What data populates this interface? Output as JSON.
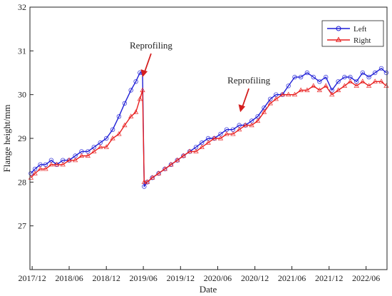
{
  "chart_data": {
    "type": "line",
    "xlabel": "Date",
    "ylabel": "Flange height/mm",
    "x_range": [
      "2017-11-20",
      "2022-09-12"
    ],
    "ylim": [
      26.0,
      32.0
    ],
    "x_ticks": [
      {
        "date": "2017-12-01",
        "label": "2017/12"
      },
      {
        "date": "2018-06-01",
        "label": "2018/06"
      },
      {
        "date": "2018-12-01",
        "label": "2018/12"
      },
      {
        "date": "2019-06-01",
        "label": "2019/06"
      },
      {
        "date": "2019-12-01",
        "label": "2019/12"
      },
      {
        "date": "2020-06-01",
        "label": "2020/06"
      },
      {
        "date": "2020-12-01",
        "label": "2020/12"
      },
      {
        "date": "2021-06-01",
        "label": "2021/06"
      },
      {
        "date": "2021-12-01",
        "label": "2021/12"
      },
      {
        "date": "2022-06-01",
        "label": "2022/06"
      }
    ],
    "y_ticks": [
      {
        "value": 27,
        "label": "27"
      },
      {
        "value": 28,
        "label": "28"
      },
      {
        "value": 29,
        "label": "29"
      },
      {
        "value": 30,
        "label": "30"
      },
      {
        "value": 31,
        "label": "31"
      },
      {
        "value": 32,
        "label": "32"
      }
    ],
    "grid": false,
    "legend_position": "top-right",
    "series": [
      {
        "name": "Left",
        "color": "#1f1fd6",
        "marker": "circle",
        "points": [
          [
            "2017-11-25",
            28.2
          ],
          [
            "2017-12-15",
            28.3
          ],
          [
            "2018-01-10",
            28.4
          ],
          [
            "2018-02-05",
            28.4
          ],
          [
            "2018-03-05",
            28.5
          ],
          [
            "2018-04-01",
            28.4
          ],
          [
            "2018-05-01",
            28.5
          ],
          [
            "2018-06-01",
            28.5
          ],
          [
            "2018-07-01",
            28.6
          ],
          [
            "2018-08-01",
            28.7
          ],
          [
            "2018-09-01",
            28.7
          ],
          [
            "2018-10-01",
            28.8
          ],
          [
            "2018-11-01",
            28.9
          ],
          [
            "2018-12-01",
            29.0
          ],
          [
            "2019-01-01",
            29.2
          ],
          [
            "2019-02-01",
            29.5
          ],
          [
            "2019-03-01",
            29.8
          ],
          [
            "2019-04-01",
            30.1
          ],
          [
            "2019-04-25",
            30.3
          ],
          [
            "2019-05-15",
            30.5
          ],
          [
            "2019-05-28",
            30.5
          ],
          [
            "2019-06-05",
            27.9
          ],
          [
            "2019-06-20",
            28.0
          ],
          [
            "2019-07-15",
            28.1
          ],
          [
            "2019-08-15",
            28.2
          ],
          [
            "2019-09-15",
            28.3
          ],
          [
            "2019-10-15",
            28.4
          ],
          [
            "2019-11-15",
            28.5
          ],
          [
            "2019-12-15",
            28.6
          ],
          [
            "2020-01-15",
            28.7
          ],
          [
            "2020-02-15",
            28.8
          ],
          [
            "2020-03-15",
            28.9
          ],
          [
            "2020-04-15",
            29.0
          ],
          [
            "2020-05-15",
            29.0
          ],
          [
            "2020-06-15",
            29.1
          ],
          [
            "2020-07-15",
            29.2
          ],
          [
            "2020-08-15",
            29.2
          ],
          [
            "2020-09-15",
            29.3
          ],
          [
            "2020-10-15",
            29.3
          ],
          [
            "2020-11-15",
            29.4
          ],
          [
            "2020-12-15",
            29.5
          ],
          [
            "2021-01-15",
            29.7
          ],
          [
            "2021-02-15",
            29.9
          ],
          [
            "2021-03-15",
            30.0
          ],
          [
            "2021-04-15",
            30.0
          ],
          [
            "2021-05-15",
            30.2
          ],
          [
            "2021-06-15",
            30.4
          ],
          [
            "2021-07-15",
            30.4
          ],
          [
            "2021-08-15",
            30.5
          ],
          [
            "2021-09-15",
            30.4
          ],
          [
            "2021-10-15",
            30.3
          ],
          [
            "2021-11-15",
            30.4
          ],
          [
            "2021-12-15",
            30.1
          ],
          [
            "2022-01-15",
            30.3
          ],
          [
            "2022-02-15",
            30.4
          ],
          [
            "2022-03-15",
            30.4
          ],
          [
            "2022-04-15",
            30.3
          ],
          [
            "2022-05-15",
            30.5
          ],
          [
            "2022-06-15",
            30.4
          ],
          [
            "2022-07-15",
            30.5
          ],
          [
            "2022-08-15",
            30.6
          ],
          [
            "2022-09-08",
            30.5
          ]
        ]
      },
      {
        "name": "Right",
        "color": "#e81e1e",
        "marker": "triangle",
        "points": [
          [
            "2017-11-25",
            28.1
          ],
          [
            "2017-12-15",
            28.2
          ],
          [
            "2018-01-10",
            28.3
          ],
          [
            "2018-02-05",
            28.3
          ],
          [
            "2018-03-05",
            28.4
          ],
          [
            "2018-04-01",
            28.4
          ],
          [
            "2018-05-01",
            28.4
          ],
          [
            "2018-06-01",
            28.5
          ],
          [
            "2018-07-01",
            28.5
          ],
          [
            "2018-08-01",
            28.6
          ],
          [
            "2018-09-01",
            28.6
          ],
          [
            "2018-10-01",
            28.7
          ],
          [
            "2018-11-01",
            28.8
          ],
          [
            "2018-12-01",
            28.8
          ],
          [
            "2019-01-01",
            29.0
          ],
          [
            "2019-02-01",
            29.1
          ],
          [
            "2019-03-01",
            29.3
          ],
          [
            "2019-04-01",
            29.5
          ],
          [
            "2019-04-25",
            29.6
          ],
          [
            "2019-05-15",
            29.9
          ],
          [
            "2019-05-28",
            30.1
          ],
          [
            "2019-06-05",
            28.0
          ],
          [
            "2019-06-20",
            28.0
          ],
          [
            "2019-07-15",
            28.1
          ],
          [
            "2019-08-15",
            28.2
          ],
          [
            "2019-09-15",
            28.3
          ],
          [
            "2019-10-15",
            28.4
          ],
          [
            "2019-11-15",
            28.5
          ],
          [
            "2019-12-15",
            28.6
          ],
          [
            "2020-01-15",
            28.7
          ],
          [
            "2020-02-15",
            28.7
          ],
          [
            "2020-03-15",
            28.8
          ],
          [
            "2020-04-15",
            28.9
          ],
          [
            "2020-05-15",
            29.0
          ],
          [
            "2020-06-15",
            29.0
          ],
          [
            "2020-07-15",
            29.1
          ],
          [
            "2020-08-15",
            29.1
          ],
          [
            "2020-09-15",
            29.2
          ],
          [
            "2020-10-15",
            29.3
          ],
          [
            "2020-11-15",
            29.3
          ],
          [
            "2020-12-15",
            29.4
          ],
          [
            "2021-01-15",
            29.6
          ],
          [
            "2021-02-15",
            29.8
          ],
          [
            "2021-03-15",
            29.9
          ],
          [
            "2021-04-15",
            30.0
          ],
          [
            "2021-05-15",
            30.0
          ],
          [
            "2021-06-15",
            30.0
          ],
          [
            "2021-07-15",
            30.1
          ],
          [
            "2021-08-15",
            30.1
          ],
          [
            "2021-09-15",
            30.2
          ],
          [
            "2021-10-15",
            30.1
          ],
          [
            "2021-11-15",
            30.2
          ],
          [
            "2021-12-15",
            30.0
          ],
          [
            "2022-01-15",
            30.1
          ],
          [
            "2022-02-15",
            30.2
          ],
          [
            "2022-03-15",
            30.3
          ],
          [
            "2022-04-15",
            30.2
          ],
          [
            "2022-05-15",
            30.3
          ],
          [
            "2022-06-15",
            30.2
          ],
          [
            "2022-07-15",
            30.3
          ],
          [
            "2022-08-15",
            30.3
          ],
          [
            "2022-09-08",
            30.2
          ]
        ]
      }
    ],
    "annotations": [
      {
        "text": "Reprofiling",
        "target_date": "2019-05-28",
        "target_value": 30.4,
        "placement": "above-left"
      },
      {
        "text": "Reprofiling",
        "target_date": "2020-09-20",
        "target_value": 29.6,
        "placement": "above-left"
      }
    ]
  }
}
